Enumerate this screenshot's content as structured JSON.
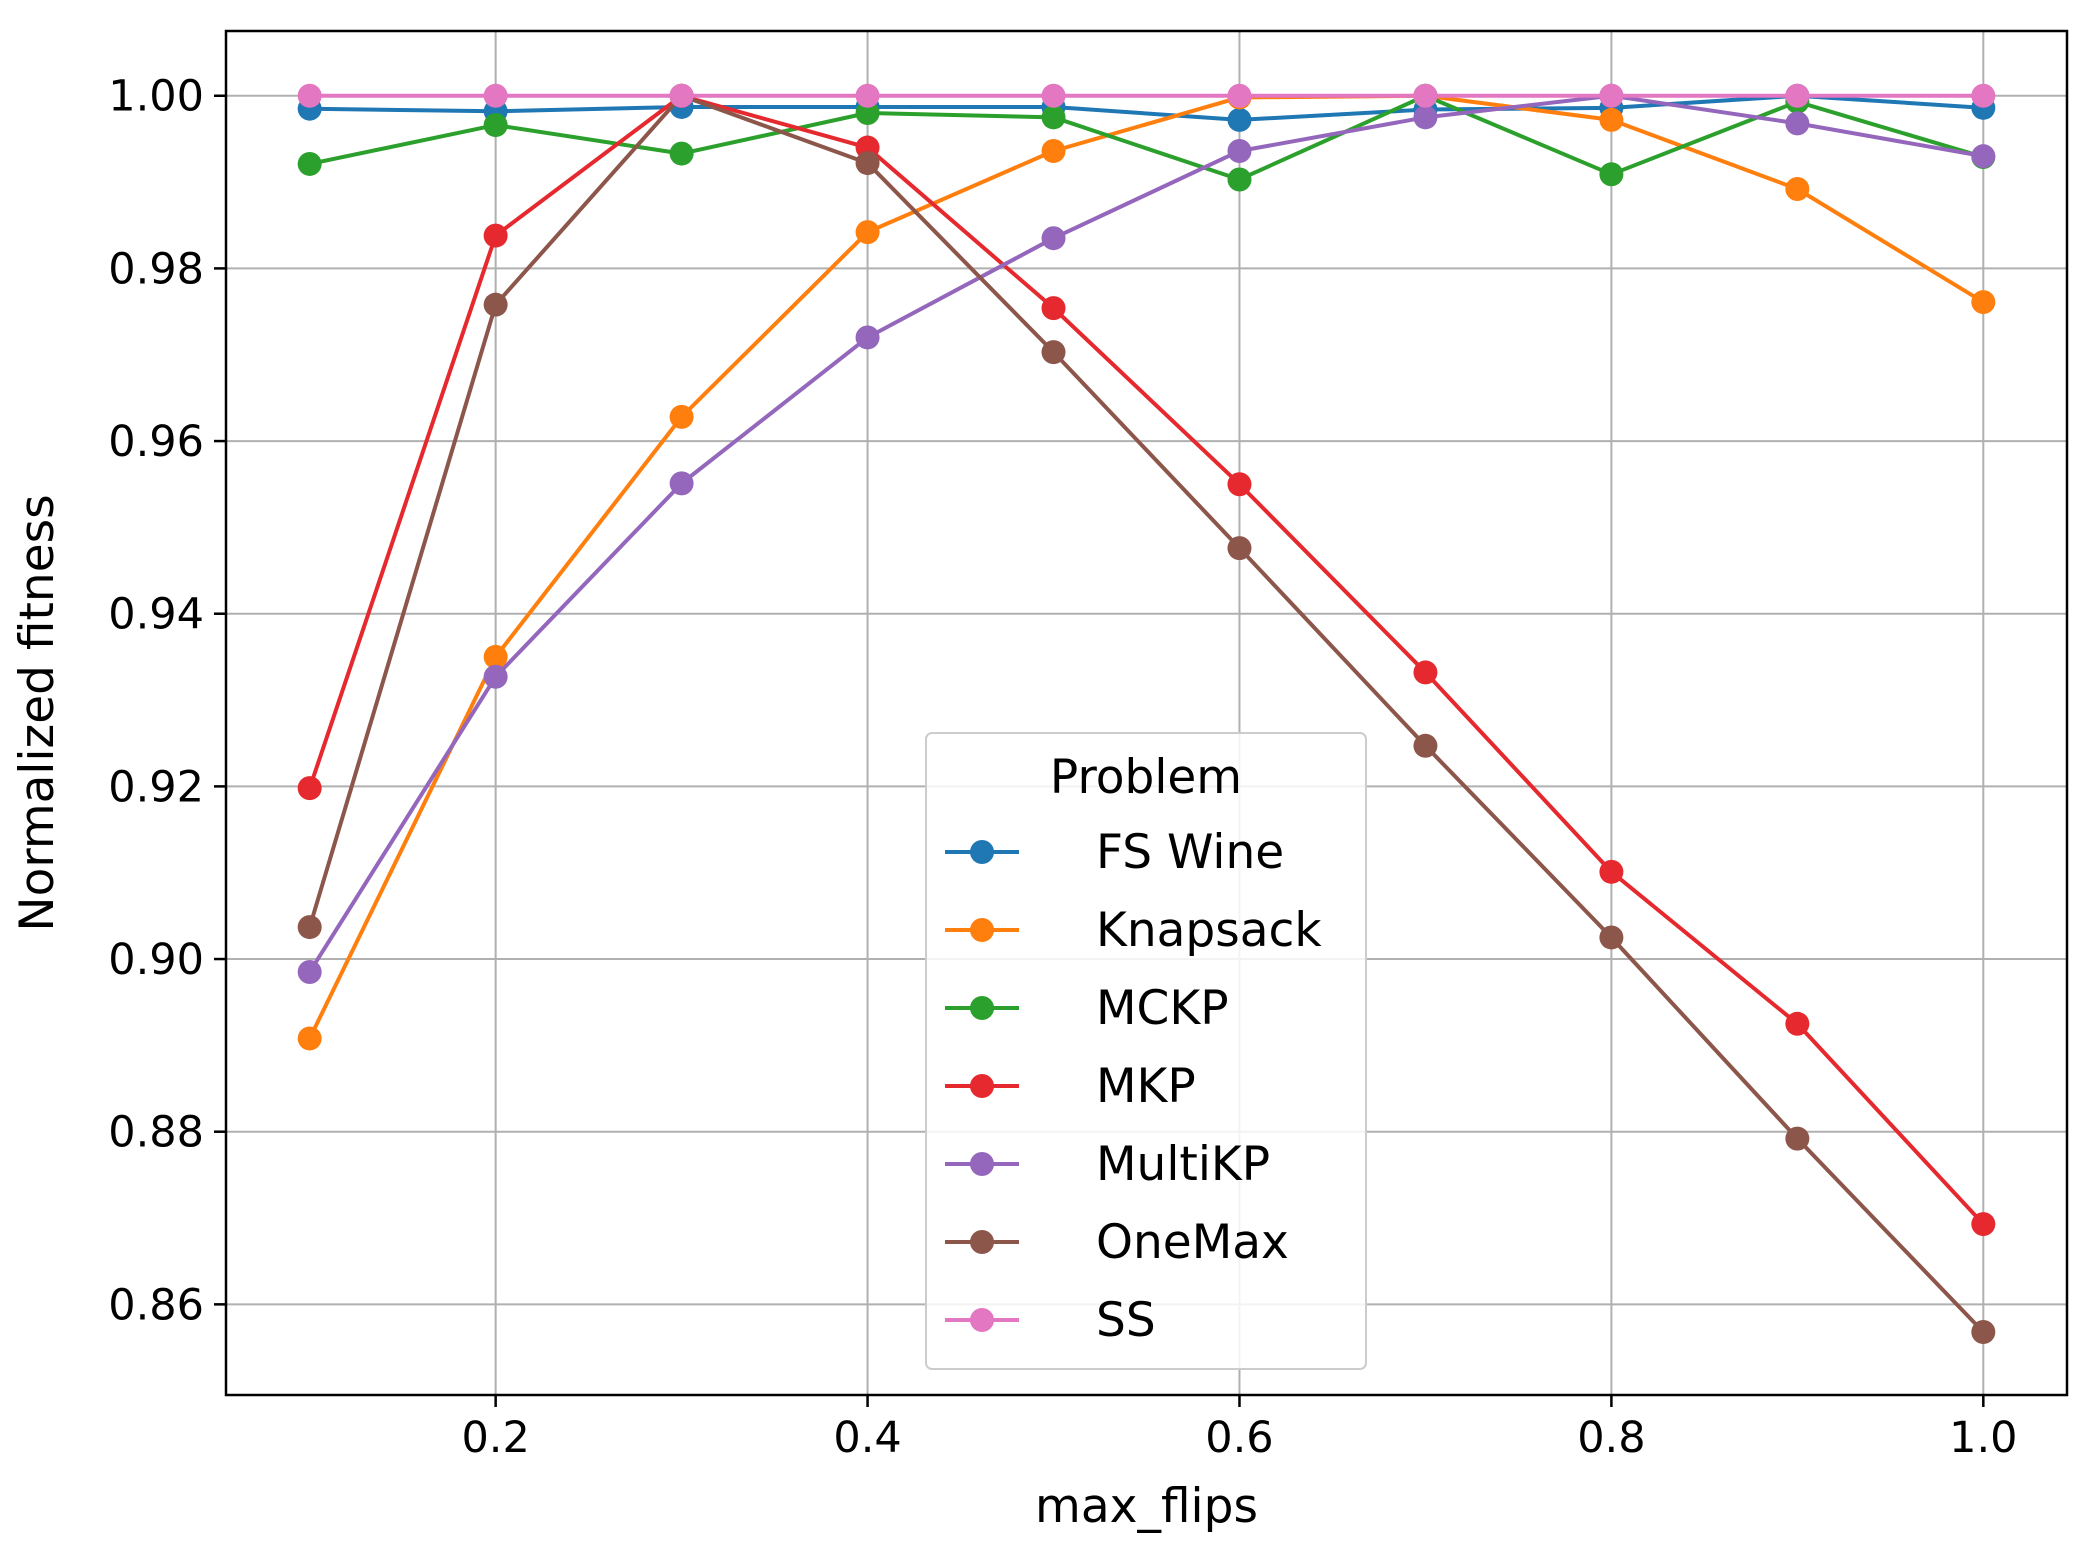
{
  "chart_data": {
    "type": "line",
    "title": "",
    "xlabel": "max_flips",
    "ylabel": "Normalized fitness",
    "x": [
      0.1,
      0.2,
      0.3,
      0.4,
      0.5,
      0.6,
      0.7,
      0.8,
      0.9,
      1.0
    ],
    "xlim": [
      0.055,
      1.045
    ],
    "ylim": [
      0.8495,
      1.0075
    ],
    "xticks": [
      0.2,
      0.4,
      0.6,
      0.8,
      1.0
    ],
    "xtick_labels": [
      "0.2",
      "0.4",
      "0.6",
      "0.8",
      "1.0"
    ],
    "yticks": [
      0.86,
      0.88,
      0.9,
      0.92,
      0.94,
      0.96,
      0.98,
      1.0
    ],
    "ytick_labels": [
      "0.86",
      "0.88",
      "0.90",
      "0.92",
      "0.94",
      "0.96",
      "0.98",
      "1.00"
    ],
    "grid": true,
    "legend": {
      "title": "Problem",
      "position": "lower-center"
    },
    "series": [
      {
        "name": "FS Wine",
        "color": "#1f77b4",
        "values": [
          0.9985,
          0.9982,
          0.9987,
          0.9987,
          0.9987,
          0.9972,
          0.9984,
          0.9986,
          1.0,
          0.9986
        ]
      },
      {
        "name": "Knapsack",
        "color": "#ff7f0e",
        "values": [
          0.8908,
          0.935,
          0.9628,
          0.9842,
          0.9936,
          0.9998,
          1.0,
          0.9972,
          0.9892,
          0.9761
        ]
      },
      {
        "name": "MCKP",
        "color": "#2ca02c",
        "values": [
          0.9921,
          0.9966,
          0.9933,
          0.998,
          0.9975,
          0.9903,
          1.0,
          0.9909,
          0.9993,
          0.9929
        ]
      },
      {
        "name": "MKP",
        "color": "#e5292e",
        "values": [
          0.9198,
          0.9838,
          1.0,
          0.994,
          0.9754,
          0.955,
          0.9332,
          0.9101,
          0.8925,
          0.8693
        ]
      },
      {
        "name": "MultiKP",
        "color": "#9467bd",
        "values": [
          0.8985,
          0.9327,
          0.9551,
          0.972,
          0.9835,
          0.9936,
          0.9975,
          1.0,
          0.9968,
          0.993
        ]
      },
      {
        "name": "OneMax",
        "color": "#8c564b",
        "values": [
          0.9037,
          0.9758,
          1.0,
          0.9922,
          0.9703,
          0.9476,
          0.9247,
          0.9025,
          0.8792,
          0.8568
        ]
      },
      {
        "name": "SS",
        "color": "#e377c2",
        "values": [
          1.0,
          1.0,
          1.0,
          1.0,
          1.0,
          1.0,
          1.0,
          1.0,
          1.0,
          1.0
        ]
      }
    ]
  }
}
